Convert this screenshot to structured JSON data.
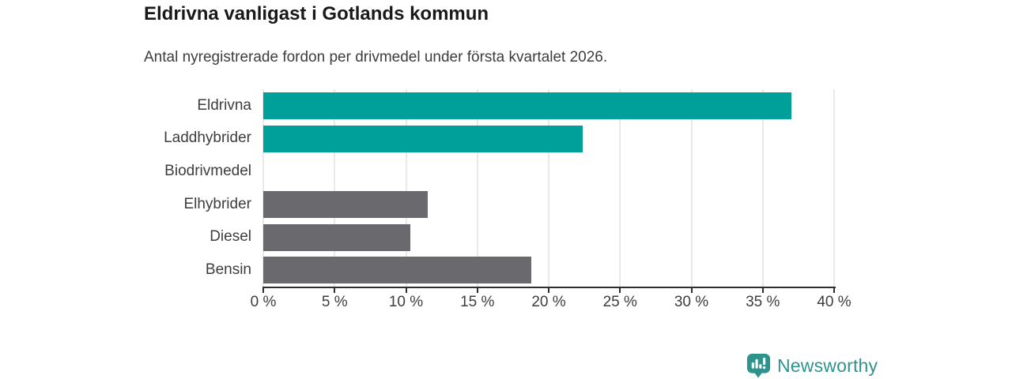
{
  "header": {
    "title": "Eldrivna vanligast i Gotlands kommun",
    "subtitle": "Antal nyregistrerade fordon per drivmedel under första kvartalet 2026."
  },
  "chart_data": {
    "type": "bar",
    "orientation": "horizontal",
    "title": "Eldrivna vanligast i Gotlands kommun",
    "subtitle": "Antal nyregistrerade fordon per drivmedel under första kvartalet 2026.",
    "categories": [
      "Eldrivna",
      "Laddhybrider",
      "Biodrivmedel",
      "Elhybrider",
      "Diesel",
      "Bensin"
    ],
    "values": [
      37.0,
      22.4,
      0,
      11.5,
      10.3,
      18.8
    ],
    "unit": "%",
    "xlim": [
      0,
      40
    ],
    "x_ticks": [
      {
        "value": 0,
        "label": "0 %"
      },
      {
        "value": 5,
        "label": "5 %"
      },
      {
        "value": 10,
        "label": "10 %"
      },
      {
        "value": 15,
        "label": "15 %"
      },
      {
        "value": 20,
        "label": "20 %"
      },
      {
        "value": 25,
        "label": "25 %"
      },
      {
        "value": 30,
        "label": "30 %"
      },
      {
        "value": 35,
        "label": "35 %"
      },
      {
        "value": 40,
        "label": "40 %"
      }
    ],
    "bar_colors": [
      "#00a09a",
      "#00a09a",
      "#6a6a6e",
      "#6a6a6e",
      "#6a6a6e",
      "#6a6a6e"
    ],
    "grid": "vertical, behind bars",
    "legend": "none",
    "ylabel": "",
    "xlabel": ""
  },
  "colors": {
    "highlight_bar": "#00a09a",
    "default_bar": "#6a6a6e",
    "gridline": "#e9e9e9",
    "axis": "#2e2e2e",
    "text": "#3d3d3d",
    "title": "#191919",
    "brand": "#2f938d"
  },
  "footer": {
    "brand": "Newsworthy",
    "logo_icon": "bar-chart-pin-icon"
  }
}
